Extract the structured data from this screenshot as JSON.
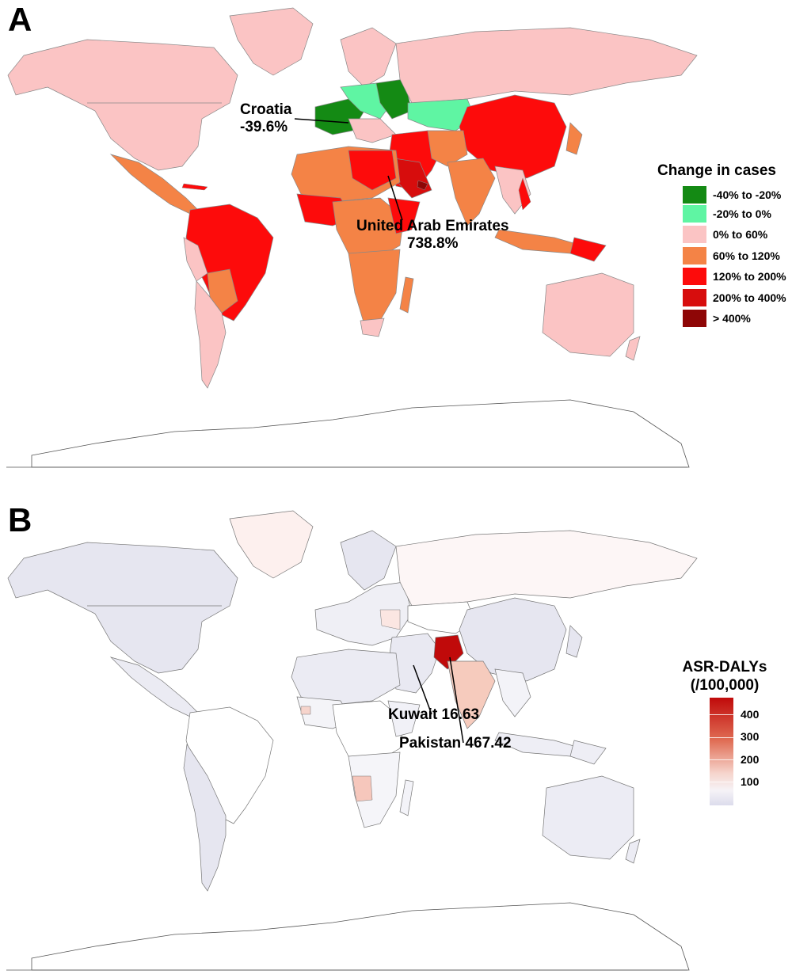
{
  "panel_a": {
    "letter": "A",
    "legend": {
      "title": "Change in cases",
      "items": [
        {
          "label": "-40% to -20%",
          "color": "#148a14"
        },
        {
          "label": "-20% to 0%",
          "color": "#5ff5a3"
        },
        {
          "label": "0% to 60%",
          "color": "#fbc4c4"
        },
        {
          "label": "60% to 120%",
          "color": "#f48346"
        },
        {
          "label": "120% to 200%",
          "color": "#fd0b0b"
        },
        {
          "label": "200% to 400%",
          "color": "#d70d0d"
        },
        {
          "label": "> 400%",
          "color": "#8e0606"
        }
      ]
    },
    "annotations": [
      {
        "lines": [
          "Croatia",
          "-39.6%"
        ]
      },
      {
        "lines": [
          "United Arab Emirates",
          "738.8%"
        ]
      }
    ]
  },
  "panel_b": {
    "letter": "B",
    "legend": {
      "title_line1": "ASR-DALYs",
      "title_line2": "(/100,000)",
      "ticks": [
        "400",
        "300",
        "200",
        "100"
      ],
      "colors": {
        "high": "#c00a0a",
        "mid": "#e06e55",
        "low": "#f6d4cc",
        "min": "#dcdcec"
      }
    },
    "annotations": [
      {
        "text": "Kuwait 16.63"
      },
      {
        "text": "Pakistan 467.42"
      }
    ]
  }
}
